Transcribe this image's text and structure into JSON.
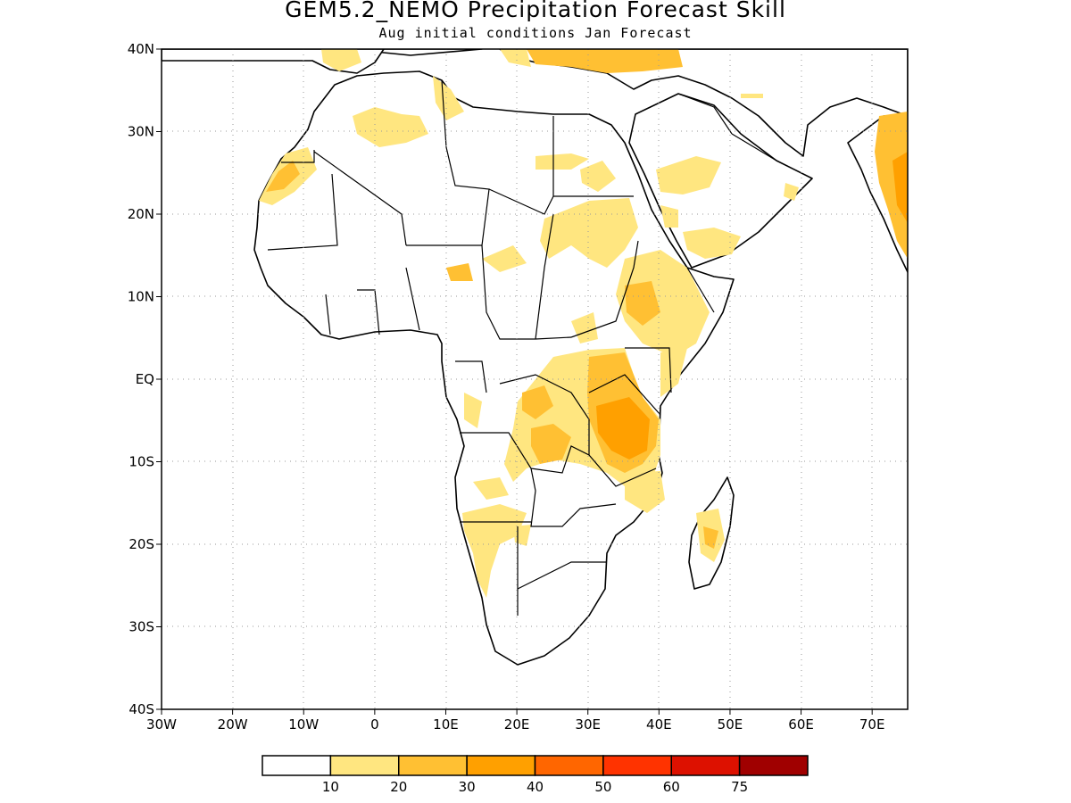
{
  "title": "GEM5.2_NEMO Precipitation Forecast Skill",
  "subtitle": "Aug initial conditions  Jan Forecast",
  "map": {
    "lon_range": [
      -30,
      75
    ],
    "lat_range": [
      -40,
      40
    ],
    "lon_ticks": [
      {
        "value": -30,
        "label": "30W"
      },
      {
        "value": -20,
        "label": "20W"
      },
      {
        "value": -10,
        "label": "10W"
      },
      {
        "value": 0,
        "label": "0"
      },
      {
        "value": 10,
        "label": "10E"
      },
      {
        "value": 20,
        "label": "20E"
      },
      {
        "value": 30,
        "label": "30E"
      },
      {
        "value": 40,
        "label": "40E"
      },
      {
        "value": 50,
        "label": "50E"
      },
      {
        "value": 60,
        "label": "60E"
      },
      {
        "value": 70,
        "label": "70E"
      }
    ],
    "lat_ticks": [
      {
        "value": 40,
        "label": "40N"
      },
      {
        "value": 30,
        "label": "30N"
      },
      {
        "value": 20,
        "label": "20N"
      },
      {
        "value": 10,
        "label": "10N"
      },
      {
        "value": 0,
        "label": "EQ"
      },
      {
        "value": -10,
        "label": "10S"
      },
      {
        "value": -20,
        "label": "20S"
      },
      {
        "value": -30,
        "label": "30S"
      },
      {
        "value": -40,
        "label": "40S"
      }
    ]
  },
  "legend": {
    "colors": [
      "#ffffff",
      "#ffe680",
      "#ffc033",
      "#ffa000",
      "#ff6600",
      "#ff3300",
      "#dd1100",
      "#a00000"
    ],
    "labels": [
      "10",
      "20",
      "30",
      "40",
      "50",
      "60",
      "75"
    ]
  }
}
